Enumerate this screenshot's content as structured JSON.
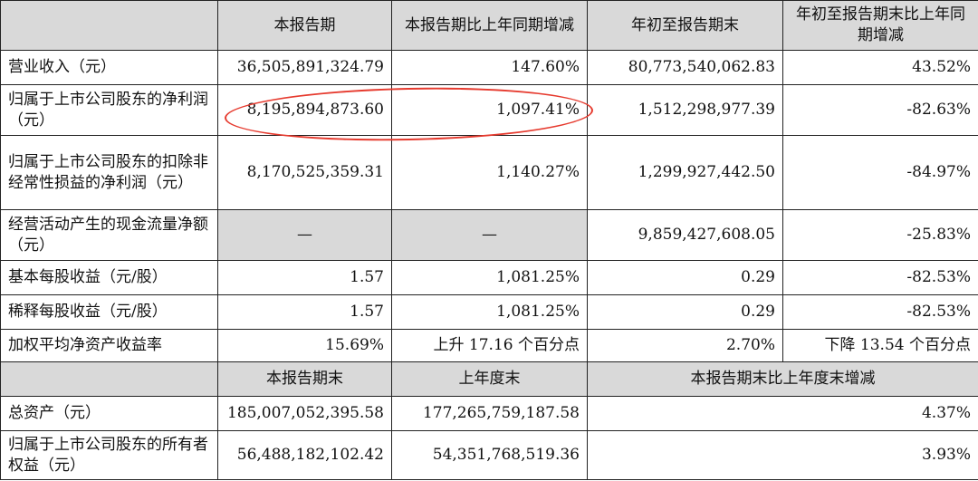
{
  "header": {
    "blank": "",
    "col1": "本报告期",
    "col2": "本报告期比上年同期增减",
    "col3": "年初至报告期末",
    "col4": "年初至报告期末比上年同期增减"
  },
  "rows": [
    {
      "label": "营业收入（元）",
      "c1": "36,505,891,324.79",
      "c2": "147.60%",
      "c3": "80,773,540,062.83",
      "c4": "43.52%"
    },
    {
      "label": "归属于上市公司股东的净利润（元）",
      "c1": "8,195,894,873.60",
      "c2": "1,097.41%",
      "c3": "1,512,298,977.39",
      "c4": "-82.63%"
    },
    {
      "label": "归属于上市公司股东的扣除非经常性损益的净利润（元）",
      "c1": "8,170,525,359.31",
      "c2": "1,140.27%",
      "c3": "1,299,927,442.50",
      "c4": "-84.97%"
    },
    {
      "label": "经营活动产生的现金流量净额（元）",
      "c1": "—",
      "c2": "—",
      "c3": "9,859,427,608.05",
      "c4": "-25.83%"
    },
    {
      "label": "基本每股收益（元/股）",
      "c1": "1.57",
      "c2": "1,081.25%",
      "c3": "0.29",
      "c4": "-82.53%"
    },
    {
      "label": "稀释每股收益（元/股）",
      "c1": "1.57",
      "c2": "1,081.25%",
      "c3": "0.29",
      "c4": "-82.53%"
    },
    {
      "label": "加权平均净资产收益率",
      "c1": "15.69%",
      "c2": "上升 17.16 个百分点",
      "c3": "2.70%",
      "c4": "下降 13.54 个百分点"
    }
  ],
  "header2": {
    "col1": "本报告期末",
    "col2": "上年度末",
    "col3": "本报告期末比上年度末增减"
  },
  "rows2": [
    {
      "label": "总资产（元）",
      "c1": "185,007,052,395.58",
      "c2": "177,265,759,187.58",
      "c3": "4.37%"
    },
    {
      "label": "归属于上市公司股东的所有者权益（元）",
      "c1": "56,488,182,102.42",
      "c2": "54,351,768,519.36",
      "c3": "3.93%"
    }
  ],
  "highlight_color": "#e63a2e"
}
